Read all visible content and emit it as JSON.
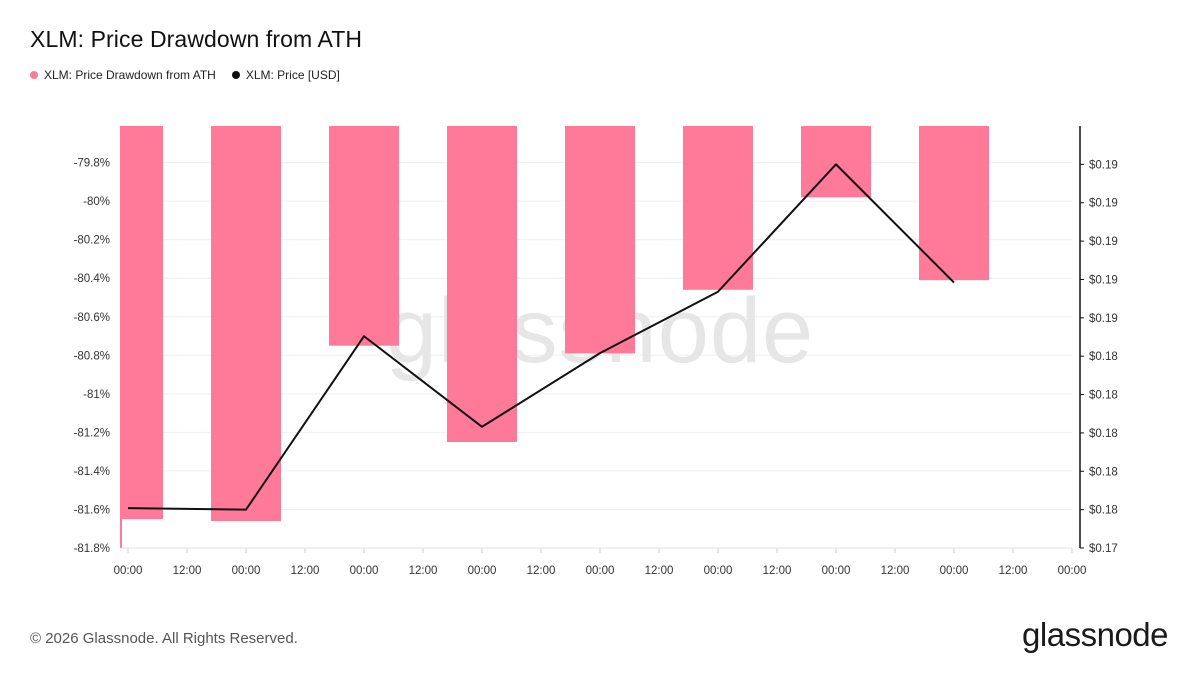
{
  "title": "XLM: Price Drawdown from ATH",
  "legend": [
    {
      "label": "XLM: Price Drawdown from ATH",
      "color": "#ff7a99"
    },
    {
      "label": "XLM: Price [USD]",
      "color": "#111111"
    }
  ],
  "watermark": "glassnode",
  "footer": {
    "copyright": "© 2026 Glassnode. All Rights Reserved.",
    "brand": "glassnode"
  },
  "chart_data": {
    "type": "bar",
    "title": "XLM: Price Drawdown from ATH",
    "bar_color": "#ff7a99",
    "line_color": "#111111",
    "x_ticks": [
      "00:00",
      "12:00",
      "00:00",
      "12:00",
      "00:00",
      "12:00",
      "00:00",
      "12:00",
      "00:00",
      "12:00",
      "00:00",
      "12:00",
      "00:00",
      "12:00",
      "00:00",
      "12:00",
      "00:00"
    ],
    "left_axis": {
      "ticks": [
        "-79.8%",
        "-80%",
        "-80.2%",
        "-80.4%",
        "-80.6%",
        "-80.8%",
        "-81%",
        "-81.2%",
        "-81.4%",
        "-81.6%",
        "-81.8%"
      ],
      "tick_values": [
        -79.8,
        -80.0,
        -80.2,
        -80.4,
        -80.6,
        -80.8,
        -81.0,
        -81.2,
        -81.4,
        -81.6,
        -81.8
      ],
      "range": [
        -81.8,
        -79.61
      ]
    },
    "right_axis": {
      "ticks": [
        "$0.19",
        "$0.19",
        "$0.19",
        "$0.19",
        "$0.19",
        "$0.18",
        "$0.18",
        "$0.18",
        "$0.18",
        "$0.18",
        "$0.17"
      ],
      "tick_values": [
        0.195,
        0.1925,
        0.19,
        0.1875,
        0.185,
        0.1825,
        0.18,
        0.1775,
        0.175,
        0.1725,
        0.17
      ],
      "range": [
        0.17,
        0.1975
      ]
    },
    "series": [
      {
        "name": "XLM: Price Drawdown from ATH",
        "kind": "bar",
        "x_index": [
          0,
          2,
          4,
          6,
          8,
          10,
          12,
          14
        ],
        "values": [
          -81.65,
          -81.66,
          -80.75,
          -81.25,
          -80.79,
          -80.46,
          -79.98,
          -80.41
        ]
      },
      {
        "name": "XLM: Price [USD]",
        "kind": "line",
        "x_index": [
          0,
          2,
          4,
          6,
          8,
          10,
          12,
          14
        ],
        "values": [
          0.1726,
          0.1725,
          0.1838,
          0.1779,
          0.1827,
          0.1867,
          0.195,
          0.1873
        ]
      }
    ],
    "grid": true
  }
}
